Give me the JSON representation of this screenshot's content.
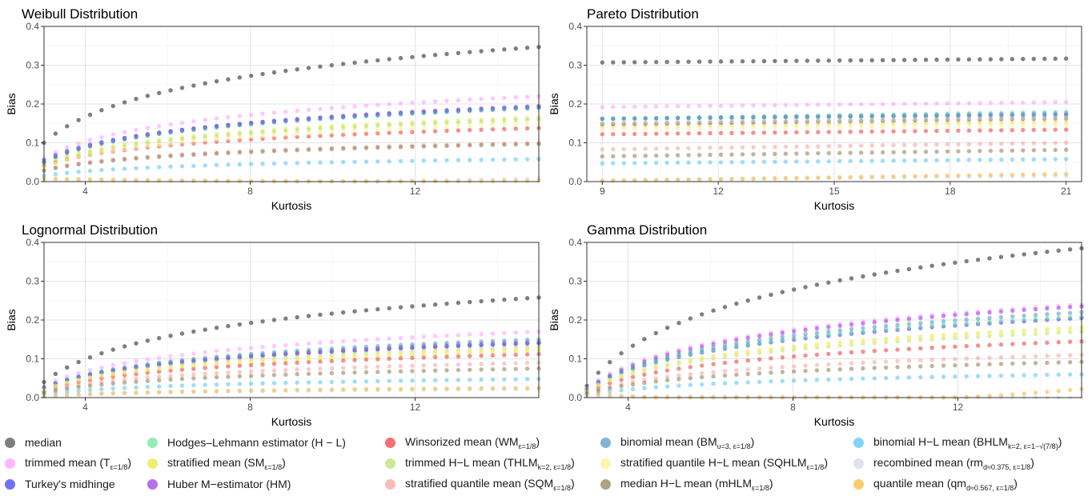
{
  "chart_data": [
    {
      "type": "scatter",
      "title": "Weibull Distribution",
      "xlabel": "Kurtosis",
      "ylabel": "Bias",
      "xlim": [
        3,
        15
      ],
      "ylim": [
        0,
        0.4
      ],
      "xticks": [
        4,
        8,
        12
      ],
      "yticks": [
        0.0,
        0.1,
        0.2,
        0.3,
        0.4
      ],
      "x_range": [
        3.0,
        15.0
      ],
      "series": [
        {
          "name": "median",
          "shape": "log",
          "start": 0.1,
          "end": 0.347
        },
        {
          "name": "trimmed mean",
          "shape": "log",
          "start": 0.06,
          "end": 0.22
        },
        {
          "name": "Turkey's midhinge",
          "shape": "log",
          "start": 0.055,
          "end": 0.192
        },
        {
          "name": "Hodges–Lehmann estimator (H−L)",
          "shape": "log",
          "start": 0.05,
          "end": 0.19
        },
        {
          "name": "stratified mean",
          "shape": "log",
          "start": 0.045,
          "end": 0.165
        },
        {
          "name": "Huber M−estimator (HM)",
          "shape": "log",
          "start": 0.05,
          "end": 0.195
        },
        {
          "name": "Winsorized mean",
          "shape": "log",
          "start": 0.04,
          "end": 0.138
        },
        {
          "name": "trimmed H−L mean",
          "shape": "log",
          "start": 0.04,
          "end": 0.16
        },
        {
          "name": "stratified quantile mean",
          "shape": "log",
          "start": 0.03,
          "end": 0.1
        },
        {
          "name": "binomial mean",
          "shape": "log",
          "start": 0.05,
          "end": 0.19
        },
        {
          "name": "stratified quantile H−L mean",
          "shape": "log",
          "start": 0.035,
          "end": 0.15
        },
        {
          "name": "median H−L mean",
          "shape": "log",
          "start": 0.028,
          "end": 0.097
        },
        {
          "name": "binomial H−L mean",
          "shape": "log",
          "start": 0.015,
          "end": 0.058
        },
        {
          "name": "recombined mean",
          "shape": "bow",
          "start": 0.005,
          "end": 0.008,
          "dip": -0.006
        },
        {
          "name": "quantile mean",
          "shape": "bow",
          "start": 0.008,
          "end": 0.002,
          "dip": -0.004
        }
      ]
    },
    {
      "type": "scatter",
      "title": "Pareto Distribution",
      "xlabel": "Kurtosis",
      "ylabel": "Bias",
      "xlim": [
        8.6,
        21.4
      ],
      "ylim": [
        0,
        0.4
      ],
      "xticks": [
        9,
        12,
        15,
        18,
        21
      ],
      "yticks": [
        0.0,
        0.1,
        0.2,
        0.3,
        0.4
      ],
      "x_range": [
        9.0,
        21.0
      ],
      "series": [
        {
          "name": "median",
          "shape": "lin",
          "start": 0.307,
          "end": 0.317
        },
        {
          "name": "trimmed mean",
          "shape": "lin",
          "start": 0.192,
          "end": 0.205
        },
        {
          "name": "Turkey's midhinge",
          "shape": "lin",
          "start": 0.162,
          "end": 0.172
        },
        {
          "name": "Hodges–Lehmann estimator (H−L)",
          "shape": "lin",
          "start": 0.162,
          "end": 0.18
        },
        {
          "name": "stratified mean",
          "shape": "lin",
          "start": 0.142,
          "end": 0.155
        },
        {
          "name": "Huber M−estimator (HM)",
          "shape": "lin",
          "start": 0.148,
          "end": 0.163
        },
        {
          "name": "Winsorized mean",
          "shape": "lin",
          "start": 0.122,
          "end": 0.134
        },
        {
          "name": "trimmed H−L mean",
          "shape": "lin",
          "start": 0.152,
          "end": 0.165
        },
        {
          "name": "stratified quantile mean",
          "shape": "lin",
          "start": 0.083,
          "end": 0.1
        },
        {
          "name": "binomial mean",
          "shape": "lin",
          "start": 0.162,
          "end": 0.176
        },
        {
          "name": "stratified quantile H−L mean",
          "shape": "lin",
          "start": 0.136,
          "end": 0.146
        },
        {
          "name": "median H−L mean",
          "shape": "lin",
          "start": 0.065,
          "end": 0.082
        },
        {
          "name": "binomial H−L mean",
          "shape": "lin",
          "start": 0.047,
          "end": 0.058
        },
        {
          "name": "recombined mean",
          "shape": "lin",
          "start": 0.003,
          "end": 0.015
        },
        {
          "name": "quantile mean",
          "shape": "lin",
          "start": 0.002,
          "end": 0.02
        }
      ]
    },
    {
      "type": "scatter",
      "title": "Lognormal Distribution",
      "xlabel": "Kurtosis",
      "ylabel": "Bias",
      "xlim": [
        3,
        15
      ],
      "ylim": [
        0,
        0.4
      ],
      "xticks": [
        4,
        8,
        12
      ],
      "yticks": [
        0.0,
        0.1,
        0.2,
        0.3,
        0.4
      ],
      "x_range": [
        3.0,
        15.0
      ],
      "series": [
        {
          "name": "median",
          "shape": "log",
          "start": 0.04,
          "end": 0.258
        },
        {
          "name": "trimmed mean",
          "shape": "log",
          "start": 0.03,
          "end": 0.17
        },
        {
          "name": "Turkey's midhinge",
          "shape": "log",
          "start": 0.025,
          "end": 0.14
        },
        {
          "name": "Hodges–Lehmann estimator (H−L)",
          "shape": "log",
          "start": 0.025,
          "end": 0.145
        },
        {
          "name": "stratified mean",
          "shape": "log",
          "start": 0.02,
          "end": 0.122
        },
        {
          "name": "Huber M−estimator (HM)",
          "shape": "log",
          "start": 0.025,
          "end": 0.142
        },
        {
          "name": "Winsorized mean",
          "shape": "log",
          "start": 0.018,
          "end": 0.112
        },
        {
          "name": "trimmed H−L mean",
          "shape": "log",
          "start": 0.022,
          "end": 0.13
        },
        {
          "name": "stratified quantile mean",
          "shape": "log",
          "start": 0.015,
          "end": 0.09
        },
        {
          "name": "binomial mean",
          "shape": "log",
          "start": 0.025,
          "end": 0.15
        },
        {
          "name": "stratified quantile H−L mean",
          "shape": "log",
          "start": 0.02,
          "end": 0.125
        },
        {
          "name": "median H−L mean",
          "shape": "log",
          "start": 0.012,
          "end": 0.075
        },
        {
          "name": "binomial H−L mean",
          "shape": "log",
          "start": 0.008,
          "end": 0.048
        },
        {
          "name": "recombined mean",
          "shape": "log",
          "start": 0.003,
          "end": 0.022
        },
        {
          "name": "quantile mean",
          "shape": "log",
          "start": 0.003,
          "end": 0.025
        }
      ]
    },
    {
      "type": "scatter",
      "title": "Gamma Distribution",
      "xlabel": "Kurtosis",
      "ylabel": "Bias",
      "xlim": [
        3,
        15
      ],
      "ylim": [
        0,
        0.4
      ],
      "xticks": [
        4,
        8,
        12
      ],
      "yticks": [
        0.0,
        0.1,
        0.2,
        0.3,
        0.4
      ],
      "x_range": [
        3.0,
        15.0
      ],
      "series": [
        {
          "name": "median",
          "shape": "log",
          "start": 0.03,
          "end": 0.385
        },
        {
          "name": "trimmed mean",
          "shape": "log",
          "start": 0.025,
          "end": 0.24
        },
        {
          "name": "Turkey's midhinge",
          "shape": "log",
          "start": 0.02,
          "end": 0.205
        },
        {
          "name": "Hodges–Lehmann estimator (H−L)",
          "shape": "log",
          "start": 0.02,
          "end": 0.21
        },
        {
          "name": "stratified mean",
          "shape": "log",
          "start": 0.018,
          "end": 0.18
        },
        {
          "name": "Huber M−estimator (HM)",
          "shape": "log",
          "start": 0.02,
          "end": 0.235
        },
        {
          "name": "Winsorized mean",
          "shape": "log",
          "start": 0.015,
          "end": 0.145
        },
        {
          "name": "trimmed H−L mean",
          "shape": "log",
          "start": 0.018,
          "end": 0.17
        },
        {
          "name": "stratified quantile mean",
          "shape": "log",
          "start": 0.012,
          "end": 0.11
        },
        {
          "name": "binomial mean",
          "shape": "log",
          "start": 0.02,
          "end": 0.22
        },
        {
          "name": "stratified quantile H−L mean",
          "shape": "log",
          "start": 0.018,
          "end": 0.175
        },
        {
          "name": "median H−L mean",
          "shape": "log",
          "start": 0.01,
          "end": 0.092
        },
        {
          "name": "binomial H−L mean",
          "shape": "log",
          "start": 0.006,
          "end": 0.06
        },
        {
          "name": "recombined mean",
          "shape": "bow",
          "start": 0.004,
          "end": 0.0,
          "dip": 0.0
        },
        {
          "name": "quantile mean",
          "shape": "bow",
          "start": 0.01,
          "end": 0.022,
          "dip": -0.025
        }
      ]
    }
  ],
  "legend": {
    "columns": [
      [
        {
          "key": "median",
          "label": "median",
          "sub": ""
        },
        {
          "key": "trimmed mean",
          "label": "trimmed mean (T",
          "sub": "ε=1/8",
          "suffix": ")"
        },
        {
          "key": "Turkey's midhinge",
          "label": "Turkey's midhinge",
          "sub": ""
        }
      ],
      [
        {
          "key": "Hodges–Lehmann estimator (H−L)",
          "label": "Hodges–Lehmann estimator (H − L)",
          "sub": ""
        },
        {
          "key": "stratified mean",
          "label": "stratified mean (SM",
          "sub": "ε=1/8",
          "suffix": ")"
        },
        {
          "key": "Huber M−estimator (HM)",
          "label": "Huber M−estimator (HM)",
          "sub": ""
        }
      ],
      [
        {
          "key": "Winsorized mean",
          "label": "Winsorized mean (WM",
          "sub": "ε=1/8",
          "suffix": ")"
        },
        {
          "key": "trimmed H−L mean",
          "label": "trimmed H−L mean (THLM",
          "sub": "k=2, ε=1/8",
          "suffix": ")"
        },
        {
          "key": "stratified quantile mean",
          "label": "stratified quantile mean (SQM",
          "sub": "ε=1/8",
          "suffix": ")"
        }
      ],
      [
        {
          "key": "binomial mean",
          "label": "binomial mean (BM",
          "sub": "υ=3, ε=1/8",
          "suffix": ")"
        },
        {
          "key": "stratified quantile H−L mean",
          "label": "stratified quantile H−L mean (SQHLM",
          "sub": "ε=1/8",
          "suffix": ")"
        },
        {
          "key": "median H−L mean",
          "label": "median H−L mean (mHLM",
          "sub": "ε=1/8",
          "suffix": ")"
        }
      ],
      [
        {
          "key": "binomial H−L mean",
          "label": "binomial H−L mean (BHLM",
          "sub": "k=2, ε=1−√(7/8)",
          "suffix": ")"
        },
        {
          "key": "recombined mean",
          "label": "recombined mean (rm",
          "sub": "d≈0.375, ε=1/8",
          "suffix": ")"
        },
        {
          "key": "quantile mean",
          "label": "quantile mean (qm",
          "sub": "d≈0.567, ε=1/8",
          "suffix": ")"
        }
      ]
    ]
  },
  "colors": {
    "median": "#7f7f7f",
    "trimmed mean": "#ff99ff",
    "Turkey's midhinge": "#3333ee",
    "Hodges–Lehmann estimator (H−L)": "#66e699",
    "stratified mean": "#e6e633",
    "Huber M−estimator (HM)": "#9933e6",
    "Winsorized mean": "#ee3333",
    "trimmed H−L mean": "#b3e066",
    "stratified quantile mean": "#f4a09b",
    "binomial mean": "#4d94c8",
    "stratified quantile H−L mean": "#fbf28c",
    "median H−L mean": "#8c7a4d",
    "binomial H−L mean": "#4dc2f5",
    "recombined mean": "#cfd8e3",
    "quantile mean": "#f7b733"
  }
}
